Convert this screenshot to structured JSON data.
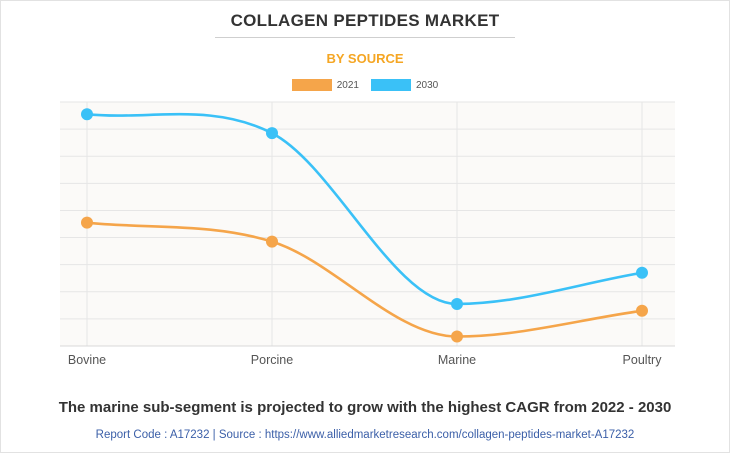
{
  "header": {
    "title": "COLLAGEN PEPTIDES MARKET",
    "subtitle": "BY SOURCE"
  },
  "colors": {
    "series_2021": "#f5a54a",
    "series_2030": "#3ac1f7",
    "subtitle": "#f5a623",
    "grid": "#e6e6e6",
    "axis_text": "#555555"
  },
  "chart_data": {
    "type": "line",
    "title": "COLLAGEN PEPTIDES MARKET",
    "subtitle": "BY SOURCE",
    "categories": [
      "Bovine",
      "Porcine",
      "Marine",
      "Poultry"
    ],
    "series": [
      {
        "name": "2021",
        "values": [
          45.5,
          38.5,
          3.5,
          13
        ]
      },
      {
        "name": "2030",
        "values": [
          85.5,
          78.5,
          15.5,
          27
        ]
      }
    ],
    "ylim": [
      0,
      90
    ],
    "grid": true,
    "legend": "top-center",
    "xlabel": "",
    "ylabel": ""
  },
  "caption": "The marine sub-segment is projected to grow with the highest CAGR from 2022 - 2030",
  "footer": "Report Code : A17232  |  Source : https://www.alliedmarketresearch.com/collagen-peptides-market-A17232"
}
